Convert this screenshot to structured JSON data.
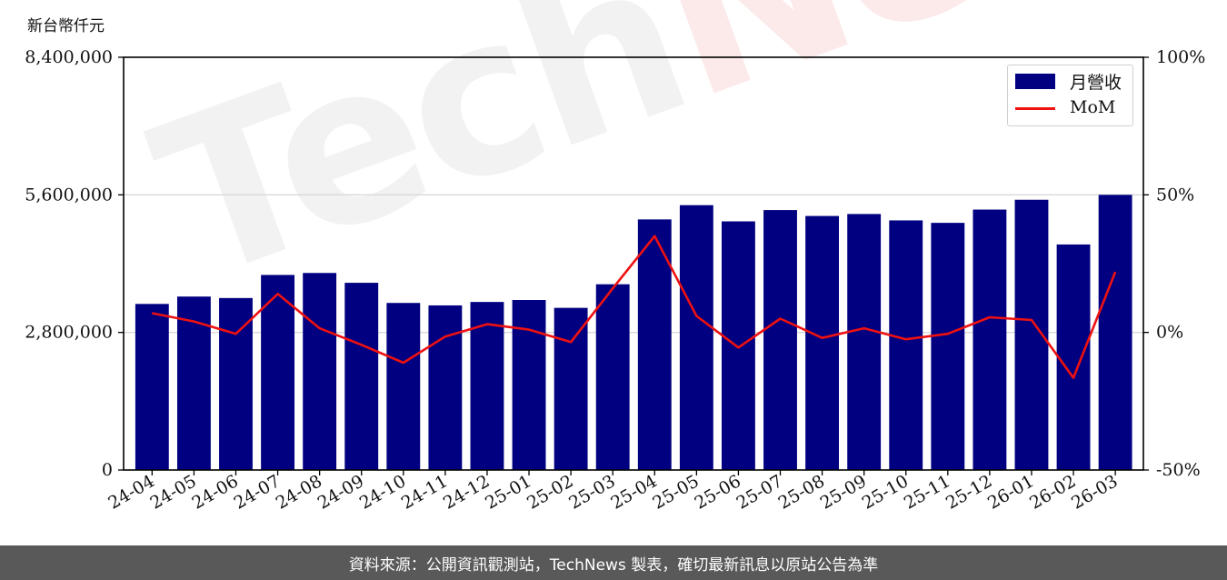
{
  "unit_label": "新台幣仟元",
  "watermark": {
    "part1": "Tech",
    "part2": "News"
  },
  "footer": "資料來源：公開資訊觀測站，TechNews 製表，確切最新訊息以原站公告為準",
  "colors": {
    "bar": "#000080",
    "line": "#ee1111",
    "grid": "#d9d9d9",
    "footer_bg": "#595959"
  },
  "chart_data": {
    "type": "bar",
    "categories": [
      "24-04",
      "24-05",
      "24-06",
      "24-07",
      "24-08",
      "24-09",
      "24-10",
      "24-11",
      "24-12",
      "25-01",
      "25-02",
      "25-03",
      "25-04",
      "25-05",
      "25-06",
      "25-07",
      "25-08",
      "25-09",
      "25-10",
      "25-11",
      "25-12",
      "26-01",
      "26-02",
      "26-03"
    ],
    "series": [
      {
        "name": "月營收",
        "axis": "left",
        "kind": "bar",
        "values": [
          3380000,
          3530000,
          3500000,
          3970000,
          4010000,
          3810000,
          3400000,
          3350000,
          3420000,
          3460000,
          3300000,
          3780000,
          5100000,
          5390000,
          5060000,
          5290000,
          5170000,
          5210000,
          5080000,
          5030000,
          5300000,
          5500000,
          4590000,
          5600000
        ]
      },
      {
        "name": "MoM",
        "axis": "right",
        "kind": "line",
        "values": [
          7,
          4,
          -0.5,
          14,
          1.5,
          -4.5,
          -11,
          -1.5,
          3,
          1,
          -3.5,
          16,
          35,
          6,
          -5.5,
          5,
          -2,
          1.5,
          -2.5,
          -0.5,
          5.5,
          4.5,
          -16.5,
          22
        ]
      }
    ],
    "y_left": {
      "ylim": [
        0,
        8400000
      ],
      "ticks": [
        "0",
        "2,800,000",
        "5,600,000",
        "8,400,000"
      ],
      "tick_values": [
        0,
        2800000,
        5600000,
        8400000
      ]
    },
    "y_right": {
      "ylim": [
        -50,
        100
      ],
      "ticks": [
        "-50%",
        "0%",
        "50%",
        "100%"
      ],
      "tick_values": [
        -50,
        0,
        50,
        100
      ]
    },
    "grid": true,
    "legend": "top-right"
  }
}
